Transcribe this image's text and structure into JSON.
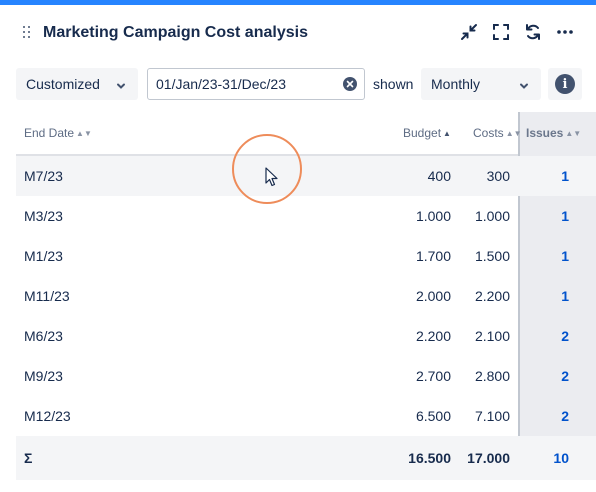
{
  "header": {
    "title": "Marketing Campaign Cost analysis",
    "icons": [
      "drag-handle-icon",
      "collapse-icon",
      "fullscreen-icon",
      "refresh-icon",
      "more-icon"
    ]
  },
  "controls": {
    "period_mode": "Customized",
    "date_range": "01/Jan/23-31/Dec/23",
    "shown_label": "shown",
    "interval": "Monthly",
    "info_glyph": "i"
  },
  "table": {
    "columns": {
      "end_date": "End Date",
      "budget": "Budget",
      "costs": "Costs",
      "issues": "Issues"
    },
    "sort": {
      "column": "budget",
      "direction": "asc"
    },
    "rows": [
      {
        "end_date": "M7/23",
        "budget": "400",
        "costs": "300",
        "issues": "1"
      },
      {
        "end_date": "M3/23",
        "budget": "1.000",
        "costs": "1.000",
        "issues": "1"
      },
      {
        "end_date": "M1/23",
        "budget": "1.700",
        "costs": "1.500",
        "issues": "1"
      },
      {
        "end_date": "M11/23",
        "budget": "2.000",
        "costs": "2.200",
        "issues": "1"
      },
      {
        "end_date": "M6/23",
        "budget": "2.200",
        "costs": "2.100",
        "issues": "2"
      },
      {
        "end_date": "M9/23",
        "budget": "2.700",
        "costs": "2.800",
        "issues": "2"
      },
      {
        "end_date": "M12/23",
        "budget": "6.500",
        "costs": "7.100",
        "issues": "2"
      }
    ],
    "totals": {
      "symbol": "Σ",
      "budget": "16.500",
      "costs": "17.000",
      "issues": "10"
    }
  },
  "colors": {
    "accent": "#2684ff",
    "link": "#0052cc",
    "cursor_ring": "#ee8c5a"
  }
}
